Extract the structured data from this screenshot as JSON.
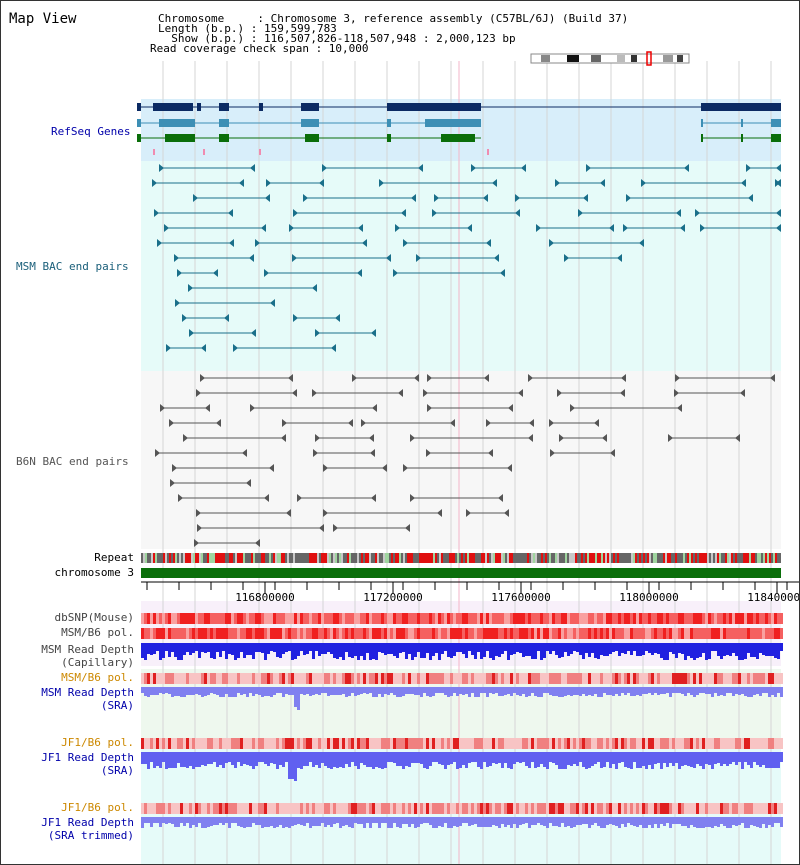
{
  "title": "Map View",
  "header": {
    "chromosome_line": "Chromosome     : Chromosome 3, reference assembly (C57BL/6J) (Build 37)",
    "length_line": "Length (b.p.) : 159,599,783",
    "show_line": "  Show (b.p.) : 116,507,826-118,507,948 : 2,000,123 bp",
    "coverage_line": "Read coverage check span : 10,000"
  },
  "tracks": {
    "refseq": "RefSeq Genes",
    "msm_bac": "MSM BAC end pairs",
    "b6n_bac": "B6N BAC end pairs",
    "repeat": "Repeat",
    "chromosome": "chromosome 3",
    "dbsnp": "dbSNP(Mouse)",
    "msm_b6_pol": "MSM/B6 pol.",
    "msm_depth_cap_1": "MSM Read Depth",
    "msm_depth_cap_2": "(Capillary)",
    "msm_b6_pol_sra": "MSM/B6 pol.",
    "msm_depth_sra_1": "MSM Read Depth",
    "msm_depth_sra_2": "(SRA)",
    "jf1_b6_pol": "JF1/B6 pol.",
    "jf1_depth_sra_1": "JF1 Read Depth",
    "jf1_depth_sra_2": "(SRA)",
    "jf1_b6_pol_trim": "JF1/B6 pol.",
    "jf1_depth_trim_1": "JF1 Read Depth",
    "jf1_depth_trim_2": "(SRA trimmed)"
  },
  "axis": {
    "ticks": [
      "116800000",
      "117200000",
      "117600000",
      "118000000",
      "118400000"
    ]
  },
  "colors": {
    "refseq_bg": "#d8eefa",
    "bac_bg": "#e6fbf9",
    "refseq_navy": "#0b2a63",
    "refseq_teal": "#3d8fb5",
    "refseq_green": "#0a6e0a",
    "msm_line": "#1a6f8a",
    "b6n_line": "#555555",
    "chrom_green": "#0a6e0a",
    "label_navy": "#0000aa",
    "label_orange": "#cc8800",
    "depth_blue": "#2020e0",
    "depth_light": "#8080f0"
  }
}
